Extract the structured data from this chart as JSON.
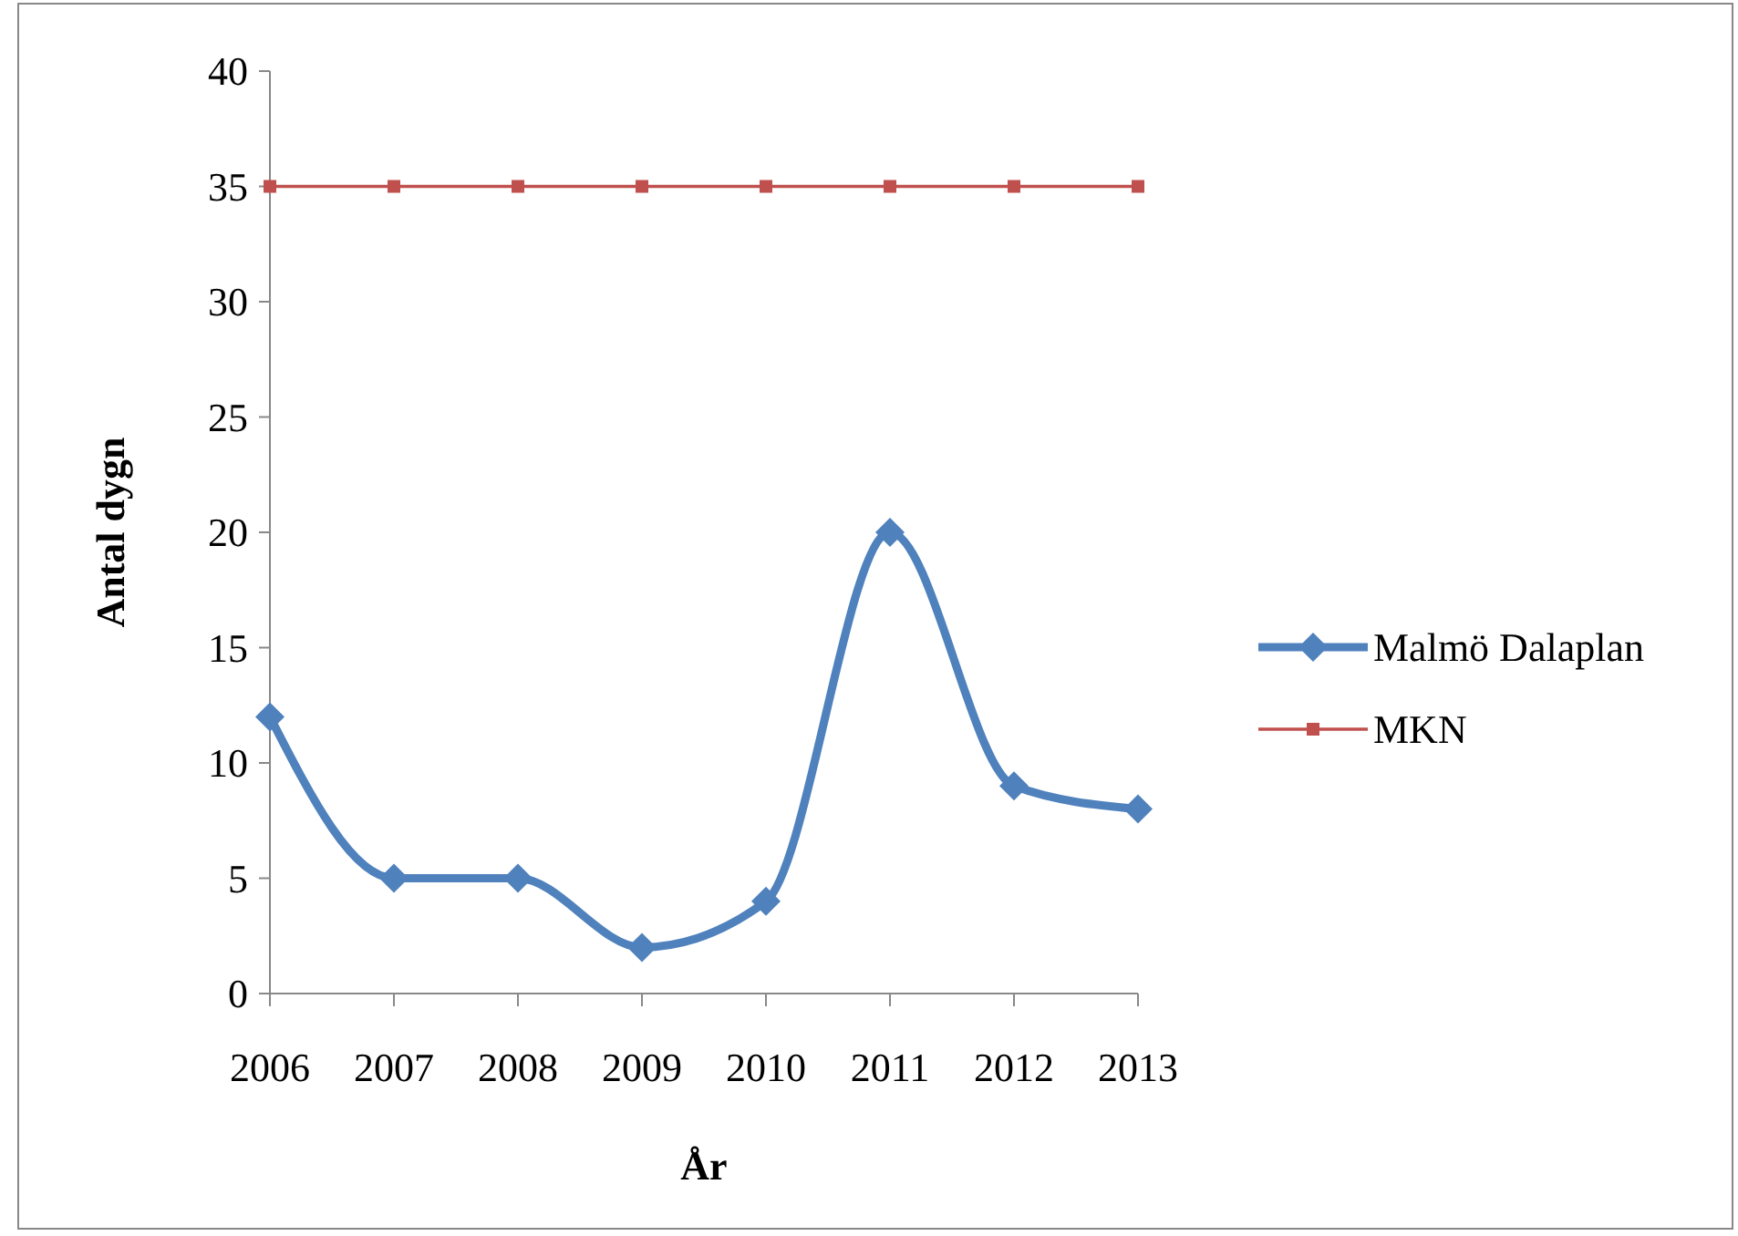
{
  "chart_data": {
    "type": "line",
    "xlabel": "År",
    "ylabel": "Antal dygn",
    "categories": [
      "2006",
      "2007",
      "2008",
      "2009",
      "2010",
      "2011",
      "2012",
      "2013"
    ],
    "series": [
      {
        "name": "Malmö Dalaplan",
        "color": "#4f81bd",
        "values": [
          12,
          5,
          5,
          2,
          4,
          20,
          9,
          8
        ],
        "marker": "diamond"
      },
      {
        "name": "MKN",
        "color": "#c0504d",
        "values": [
          35,
          35,
          35,
          35,
          35,
          35,
          35,
          35
        ],
        "marker": "square"
      }
    ],
    "ylim": [
      0,
      40
    ],
    "yticks": [
      0,
      5,
      10,
      15,
      20,
      25,
      30,
      35,
      40
    ],
    "grid": false,
    "legend": "right"
  }
}
